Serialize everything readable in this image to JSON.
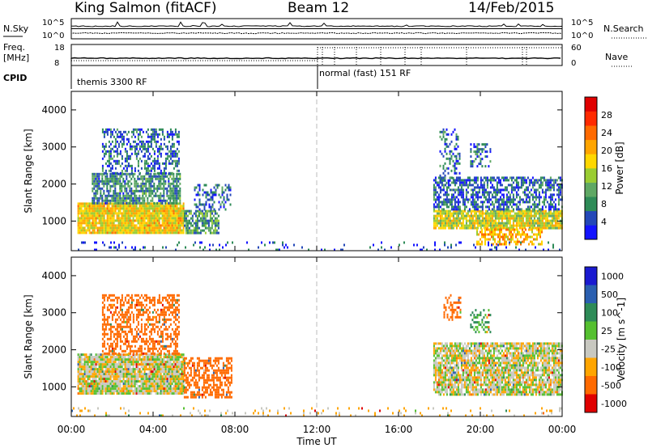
{
  "header": {
    "station": "King Salmon (fitACF)",
    "beam": "Beam 12",
    "date": "14/Feb/2015"
  },
  "summary_panel": {
    "noise_left_label": "N.Sky",
    "noise_right_label": "N.Search",
    "noise_left_ticks": [
      "10^5",
      "10^0"
    ],
    "noise_right_ticks": [
      "10^5",
      "10^0"
    ],
    "freq_label": "Freq.",
    "freq_unit": "[MHz]",
    "freq_ticks": [
      "18",
      "8"
    ],
    "nave_label": "Nave",
    "nave_ticks": [
      "60",
      "0"
    ],
    "cpid_label": "CPID",
    "cpid_segments": [
      {
        "start_hour": 0,
        "end_hour": 12,
        "text": "themis 3300 RF"
      },
      {
        "start_hour": 12,
        "end_hour": 24,
        "text": "normal (fast) 151 RF"
      }
    ]
  },
  "chart_data": [
    {
      "type": "heatmap",
      "title": "",
      "xlabel": "Time UT",
      "ylabel": "Slant Range [km]",
      "xlim": [
        0,
        24
      ],
      "ylim": [
        200,
        4500
      ],
      "x_ticks": [
        "00:00",
        "04:00",
        "08:00",
        "12:00",
        "16:00",
        "20:00",
        "00:00"
      ],
      "y_ticks": [
        1000,
        2000,
        3000,
        4000
      ],
      "colorbar": {
        "label": "Power [dB]",
        "range": [
          0,
          32
        ],
        "ticks": [
          4,
          8,
          12,
          16,
          20,
          24,
          28
        ],
        "colors": [
          "#1414ff",
          "#2448b8",
          "#2e8b57",
          "#5fa864",
          "#9acd32",
          "#ffd700",
          "#ffa500",
          "#ff6a00",
          "#ff2a00",
          "#e00000"
        ]
      },
      "regions": [
        {
          "t0": 0.3,
          "t1": 5.5,
          "r0": 700,
          "r1": 1500,
          "level": 18,
          "density": 0.95
        },
        {
          "t0": 1.0,
          "t1": 5.3,
          "r0": 1500,
          "r1": 2300,
          "level": 8,
          "density": 0.75
        },
        {
          "t0": 1.5,
          "t1": 5.3,
          "r0": 2300,
          "r1": 3500,
          "level": 6,
          "density": 0.45
        },
        {
          "t0": 5.5,
          "t1": 7.2,
          "r0": 700,
          "r1": 1300,
          "level": 10,
          "density": 0.7
        },
        {
          "t0": 6.0,
          "t1": 7.8,
          "r0": 1300,
          "r1": 2000,
          "level": 6,
          "density": 0.4
        },
        {
          "t0": 17.7,
          "t1": 24.0,
          "r0": 800,
          "r1": 1300,
          "level": 16,
          "density": 0.9
        },
        {
          "t0": 17.7,
          "t1": 24.0,
          "r0": 1300,
          "r1": 2200,
          "level": 6,
          "density": 0.6
        },
        {
          "t0": 18.0,
          "t1": 19.0,
          "r0": 2000,
          "r1": 3500,
          "level": 6,
          "density": 0.35
        },
        {
          "t0": 19.5,
          "t1": 20.5,
          "r0": 2500,
          "r1": 3100,
          "level": 6,
          "density": 0.35
        },
        {
          "t0": 19.8,
          "t1": 23.0,
          "r0": 400,
          "r1": 800,
          "level": 20,
          "density": 0.6
        },
        {
          "t0": 0.0,
          "t1": 24.0,
          "r0": 200,
          "r1": 450,
          "level": 4,
          "density": 0.1
        }
      ]
    },
    {
      "type": "heatmap",
      "title": "",
      "xlabel": "Time UT",
      "ylabel": "Slant Range [km]",
      "xlim": [
        0,
        24
      ],
      "ylim": [
        200,
        4500
      ],
      "x_ticks": [
        "00:00",
        "04:00",
        "08:00",
        "12:00",
        "16:00",
        "20:00",
        "00:00"
      ],
      "y_ticks": [
        1000,
        2000,
        3000,
        4000
      ],
      "colorbar": {
        "label": "Velocity [m s^-1]",
        "tick_labels": [
          "1000",
          "500",
          "100",
          "25",
          "-25",
          "-100",
          "-500",
          "-1000"
        ],
        "colors": [
          "#1a1ad0",
          "#2a5fb0",
          "#2e8b57",
          "#55c030",
          "#c8c8c0",
          "#ffa500",
          "#ff6a00",
          "#e00000"
        ]
      },
      "regions": [
        {
          "t0": 0.3,
          "t1": 5.5,
          "r0": 800,
          "r1": 1900,
          "velocity": 0,
          "density": 0.95
        },
        {
          "t0": 1.5,
          "t1": 5.3,
          "r0": 1900,
          "r1": 3500,
          "velocity": -200,
          "density": 0.5
        },
        {
          "t0": 5.5,
          "t1": 7.8,
          "r0": 700,
          "r1": 1800,
          "velocity": -300,
          "density": 0.6
        },
        {
          "t0": 17.7,
          "t1": 24.0,
          "r0": 800,
          "r1": 2200,
          "velocity": 0,
          "density": 0.85
        },
        {
          "t0": 18.2,
          "t1": 19.0,
          "r0": 2800,
          "r1": 3500,
          "velocity": -400,
          "density": 0.4
        },
        {
          "t0": 19.5,
          "t1": 20.5,
          "r0": 2500,
          "r1": 3100,
          "velocity": 120,
          "density": 0.4
        },
        {
          "t0": 0.0,
          "t1": 24.0,
          "r0": 200,
          "r1": 450,
          "velocity": -40,
          "density": 0.1
        }
      ]
    }
  ]
}
